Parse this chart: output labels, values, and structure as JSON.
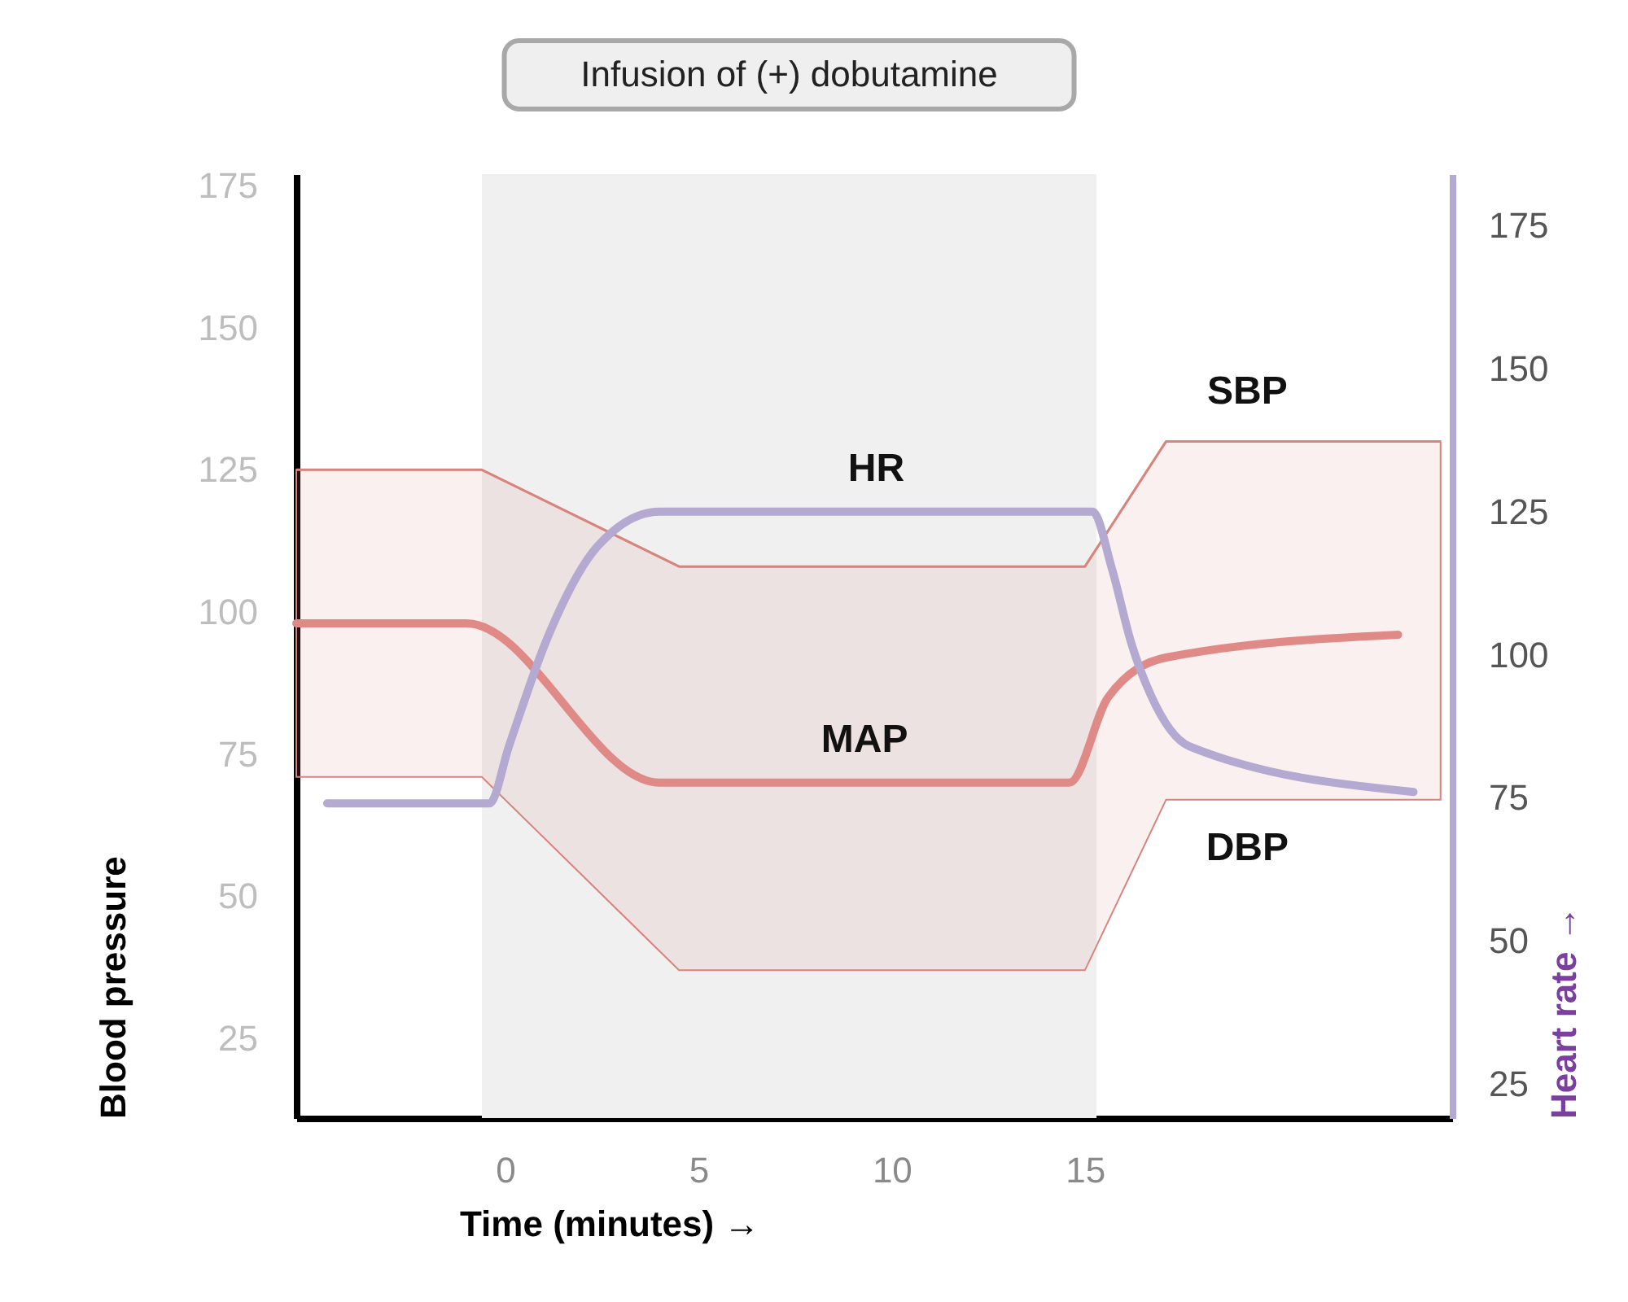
{
  "chart_data": {
    "type": "line",
    "xlabel": "Time (minutes) →",
    "ylabel": "Blood pressure",
    "y2label": "Heart rate →",
    "xlim": [
      -5.4,
      24.5
    ],
    "xticks": [
      0,
      5,
      10,
      15
    ],
    "ylim": [
      11,
      177
    ],
    "yticks": [
      25,
      50,
      75,
      100,
      125,
      150,
      175
    ],
    "y2lim": [
      19,
      184
    ],
    "y2ticks": [
      25,
      50,
      75,
      100,
      125,
      150,
      175
    ],
    "grid": false,
    "line_style": "solid",
    "marker": "none",
    "bands": [
      {
        "axis": "x",
        "from": -0.6,
        "to": 15.3,
        "label": "Infusion of (+) dobutamine",
        "color": "#f0f0f0"
      }
    ],
    "series": [
      {
        "type": "line",
        "color": "#d9837d",
        "x": [
          -5.4,
          -0.6,
          4.5,
          15.0,
          17.1,
          24.2
        ],
        "values": [
          125,
          125,
          108,
          108,
          130,
          130
        ],
        "lower": [
          71,
          71,
          37,
          37,
          67,
          67
        ],
        "upper": [
          125,
          125,
          108,
          108,
          130,
          130
        ]
      },
      {
        "type": "line",
        "name": "MAP",
        "color": "#e08a88",
        "x": [
          -5.4,
          -1.0,
          4.0,
          14.6,
          15.6,
          17.1,
          23.1
        ],
        "values": [
          98,
          98,
          70,
          70,
          85,
          92,
          96
        ]
      },
      {
        "type": "line",
        "name": "HR",
        "color": "#b3a9d1",
        "axis": "y2",
        "x": [
          -4.6,
          -0.4,
          0.1,
          1.1,
          2.4,
          4.0,
          15.2,
          15.7,
          16.2,
          16.7,
          17.7,
          23.5
        ],
        "values": [
          74,
          74,
          84,
          103,
          119,
          125,
          125,
          115,
          102,
          93,
          84,
          76
        ]
      }
    ],
    "annotations": [
      {
        "text": "SBP",
        "x": 19.2,
        "y": 130
      },
      {
        "text": "DBP",
        "x": 19.2,
        "y": 67
      }
    ]
  }
}
